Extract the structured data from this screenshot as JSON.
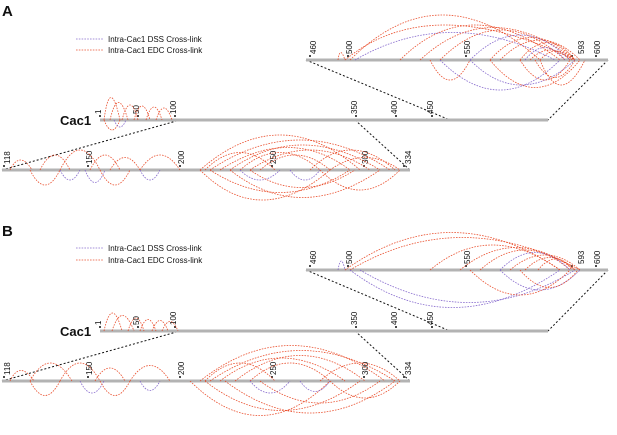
{
  "panels": [
    {
      "letter": "A",
      "legend": {
        "dss_label": "Intra-Cac1 DSS Cross-link",
        "edc_label": "Intra-Cac1 EDC Cross-link"
      },
      "protein_label": "Cac1",
      "main_ticks": [
        "1",
        "50",
        "100",
        "350",
        "400",
        "450"
      ],
      "left_ticks": [
        "118",
        "150",
        "200",
        "250",
        "300",
        "334"
      ],
      "right_ticks": [
        "460",
        "500",
        "550",
        "593",
        "600"
      ]
    },
    {
      "letter": "B",
      "legend": {
        "dss_label": "Intra-Cac1 DSS Cross-link",
        "edc_label": "Intra-Cac1 EDC Cross-link"
      },
      "protein_label": "Cac1",
      "main_ticks": [
        "1",
        "50",
        "100",
        "350",
        "400",
        "450"
      ],
      "left_ticks": [
        "118",
        "150",
        "200",
        "250",
        "300",
        "334"
      ],
      "right_ticks": [
        "460",
        "500",
        "550",
        "593",
        "600"
      ]
    }
  ],
  "colors": {
    "edc": "#e8401c",
    "dss": "#7b5cc9",
    "bar": "#b3b3b3"
  }
}
